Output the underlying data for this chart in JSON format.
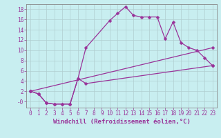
{
  "xlabel": "Windchill (Refroidissement éolien,°C)",
  "background_color": "#c8eef0",
  "grid_color": "#b0cdd0",
  "line_color": "#993399",
  "xlim_min": -0.5,
  "xlim_max": 23.5,
  "ylim_min": -1.2,
  "ylim_max": 19.0,
  "yticks": [
    0,
    2,
    4,
    6,
    8,
    10,
    12,
    14,
    16,
    18
  ],
  "ytick_labels": [
    "-0",
    "2",
    "4",
    "6",
    "8",
    "10",
    "12",
    "14",
    "16",
    "18"
  ],
  "xticks": [
    0,
    1,
    2,
    3,
    4,
    5,
    6,
    7,
    8,
    9,
    10,
    11,
    12,
    13,
    14,
    15,
    16,
    17,
    18,
    19,
    20,
    21,
    22,
    23
  ],
  "line1_x": [
    0,
    1,
    2,
    3,
    4,
    5,
    6,
    7,
    10,
    11,
    12,
    13,
    14,
    15,
    16,
    17,
    18,
    19,
    20,
    21,
    22,
    23
  ],
  "line1_y": [
    2,
    1.5,
    -0.3,
    -0.5,
    -0.5,
    -0.5,
    4.5,
    10.5,
    15.8,
    17.2,
    18.5,
    16.8,
    16.5,
    16.5,
    16.5,
    12.2,
    15.5,
    11.5,
    10.5,
    10.0,
    8.5,
    7.0
  ],
  "line2_x": [
    0,
    1,
    2,
    3,
    4,
    5,
    6,
    7,
    23
  ],
  "line2_y": [
    2,
    1.5,
    -0.3,
    -0.5,
    -0.5,
    -0.5,
    4.5,
    3.5,
    7.0
  ],
  "line3_x": [
    0,
    23
  ],
  "line3_y": [
    2,
    10.5
  ],
  "markersize": 2.5,
  "linewidth": 0.9,
  "tick_fontsize": 5.5,
  "xlabel_fontsize": 6.5
}
